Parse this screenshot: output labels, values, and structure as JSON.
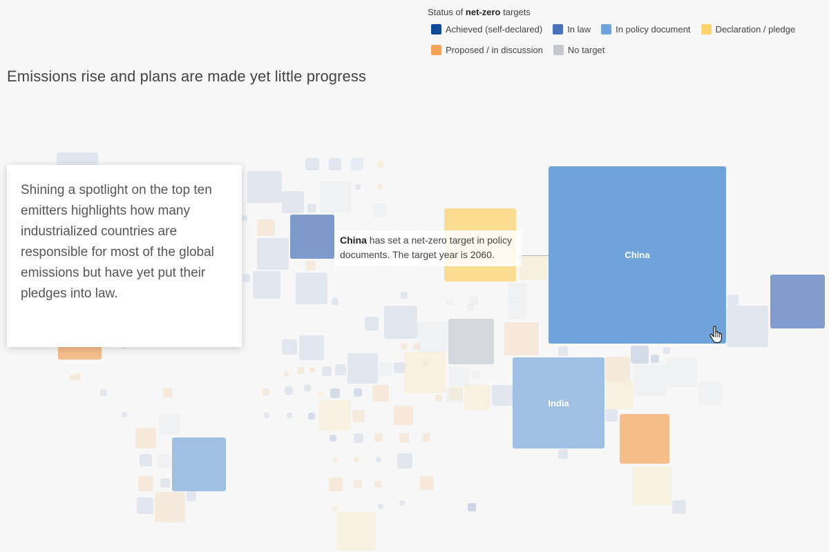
{
  "legend": {
    "title_prefix": "Status of ",
    "title_bold": "net-zero",
    "title_suffix": " targets",
    "items": [
      {
        "label": "Achieved (self-declared)",
        "color": "#0c4a96"
      },
      {
        "label": "In law",
        "color": "#4a72b8"
      },
      {
        "label": "In policy document",
        "color": "#70a3d9"
      },
      {
        "label": "Declaration / pledge",
        "color": "#fdd36e"
      },
      {
        "label": "Proposed / in discussion",
        "color": "#f4a45a"
      },
      {
        "label": "No target",
        "color": "#c5c9ce"
      }
    ]
  },
  "headline": "Emissions rise and plans are made yet little progress",
  "story_text": "Shining a spotlight on the top ten emitters highlights how many industrialized countries are responsible for most of the global emissions but have yet put their pledges into law.",
  "tooltip": {
    "country": "China",
    "text": " has set a net-zero target in policy documents. The target year is 2060."
  },
  "countries": {
    "china": "China",
    "india": "India"
  },
  "cursor_icon": "hand-pointer-icon"
}
